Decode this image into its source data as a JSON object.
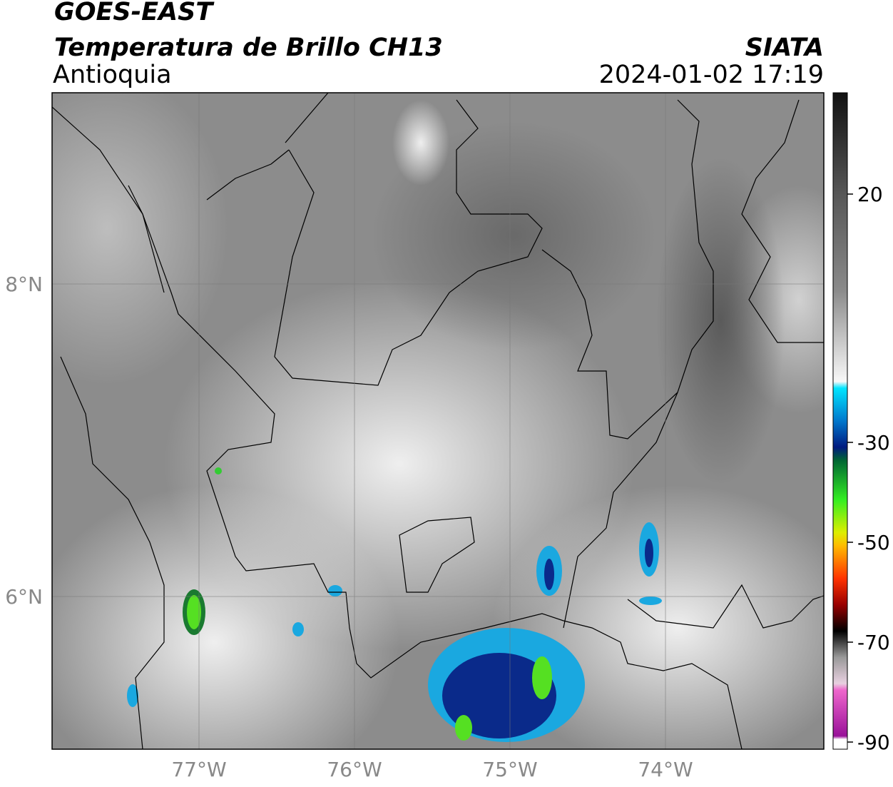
{
  "header": {
    "title": "GOES-EAST",
    "subtitle": "Temperatura de Brillo CH13",
    "region": "Antioquia",
    "source": "SIATA",
    "datetime": "2024-01-02 17:19"
  },
  "map": {
    "lat_labels": [
      "8°N",
      "6°N"
    ],
    "lon_labels": [
      "77°W",
      "76°W",
      "75°W",
      "74°W"
    ]
  },
  "colorbar": {
    "ticks": [
      20,
      -30,
      -50,
      -70,
      -90
    ]
  }
}
